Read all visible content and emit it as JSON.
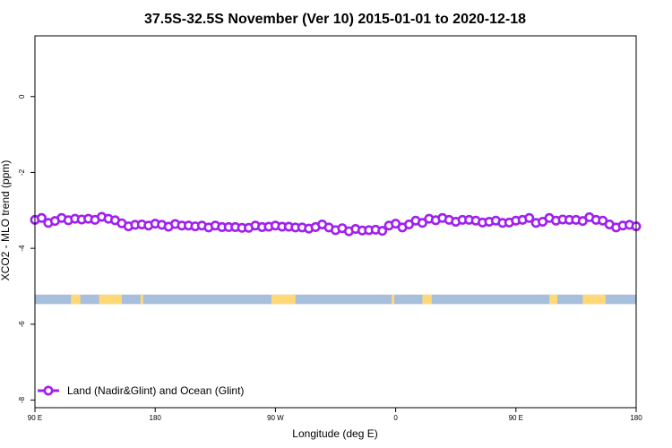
{
  "chart_data": {
    "type": "line",
    "title": "37.5S-32.5S November (Ver 10)   2015-01-01 to 2020-12-18",
    "xlabel": "Longitude (deg E)",
    "ylabel": "XCO2 - MLO trend (ppm)",
    "x_unit": "deg E (lon shifted, 90E..180..90W..0..90E..180)",
    "xlim": [
      90,
      540
    ],
    "ylim": [
      -8.2,
      1.6
    ],
    "x_ticks": [
      {
        "value": 90,
        "label": "90 E"
      },
      {
        "value": 180,
        "label": "180"
      },
      {
        "value": 270,
        "label": "90 W"
      },
      {
        "value": 360,
        "label": "0"
      },
      {
        "value": 450,
        "label": "90 E"
      },
      {
        "value": 540,
        "label": "180"
      }
    ],
    "y_ticks": [
      {
        "value": 0,
        "label": "0"
      },
      {
        "value": -2,
        "label": "-2"
      },
      {
        "value": -4,
        "label": "-4"
      },
      {
        "value": -6,
        "label": "-6"
      },
      {
        "value": -8,
        "label": "-8"
      }
    ],
    "grid": false,
    "legend_position": "bottom-left",
    "series": [
      {
        "name": "Land (Nadir&Glint) and Ocean (Glint)",
        "color": "#a020f0",
        "marker": "open-circle",
        "x": [
          90,
          95,
          100,
          105,
          110,
          115,
          120,
          125,
          130,
          135,
          140,
          145,
          150,
          155,
          160,
          165,
          170,
          175,
          180,
          185,
          190,
          195,
          200,
          205,
          210,
          215,
          220,
          225,
          230,
          235,
          240,
          245,
          250,
          255,
          260,
          265,
          270,
          275,
          280,
          285,
          290,
          295,
          300,
          305,
          310,
          315,
          320,
          325,
          330,
          335,
          340,
          345,
          350,
          355,
          360,
          365,
          370,
          375,
          380,
          385,
          390,
          395,
          400,
          405,
          410,
          415,
          420,
          425,
          430,
          435,
          440,
          445,
          450,
          455,
          460,
          465,
          470,
          475,
          480,
          485,
          490,
          495,
          500,
          505,
          510,
          515,
          520,
          525,
          530,
          535,
          540
        ],
        "y": [
          -3.25,
          -3.2,
          -3.33,
          -3.28,
          -3.2,
          -3.26,
          -3.22,
          -3.24,
          -3.22,
          -3.25,
          -3.17,
          -3.22,
          -3.26,
          -3.34,
          -3.42,
          -3.38,
          -3.37,
          -3.4,
          -3.35,
          -3.38,
          -3.43,
          -3.36,
          -3.4,
          -3.4,
          -3.42,
          -3.4,
          -3.45,
          -3.4,
          -3.44,
          -3.44,
          -3.44,
          -3.46,
          -3.46,
          -3.4,
          -3.44,
          -3.43,
          -3.4,
          -3.43,
          -3.43,
          -3.45,
          -3.45,
          -3.48,
          -3.44,
          -3.37,
          -3.45,
          -3.52,
          -3.47,
          -3.55,
          -3.49,
          -3.53,
          -3.52,
          -3.51,
          -3.54,
          -3.4,
          -3.35,
          -3.45,
          -3.37,
          -3.27,
          -3.33,
          -3.22,
          -3.26,
          -3.2,
          -3.25,
          -3.3,
          -3.25,
          -3.25,
          -3.27,
          -3.32,
          -3.3,
          -3.27,
          -3.33,
          -3.32,
          -3.27,
          -3.25,
          -3.2,
          -3.33,
          -3.3,
          -3.2,
          -3.27,
          -3.24,
          -3.25,
          -3.25,
          -3.28,
          -3.18,
          -3.25,
          -3.27,
          -3.37,
          -3.45,
          -3.4,
          -3.38,
          -3.42
        ]
      }
    ],
    "land_strip": {
      "y_top": -5.22,
      "y_bottom": -5.47,
      "ocean_color": "#a7bedc",
      "land_color": "#ffd978",
      "land_ranges": [
        [
          117,
          124
        ],
        [
          138,
          155
        ],
        [
          169,
          171
        ],
        [
          267,
          285
        ],
        [
          357,
          359
        ],
        [
          380,
          387
        ],
        [
          475,
          481
        ],
        [
          500,
          517
        ]
      ]
    }
  }
}
